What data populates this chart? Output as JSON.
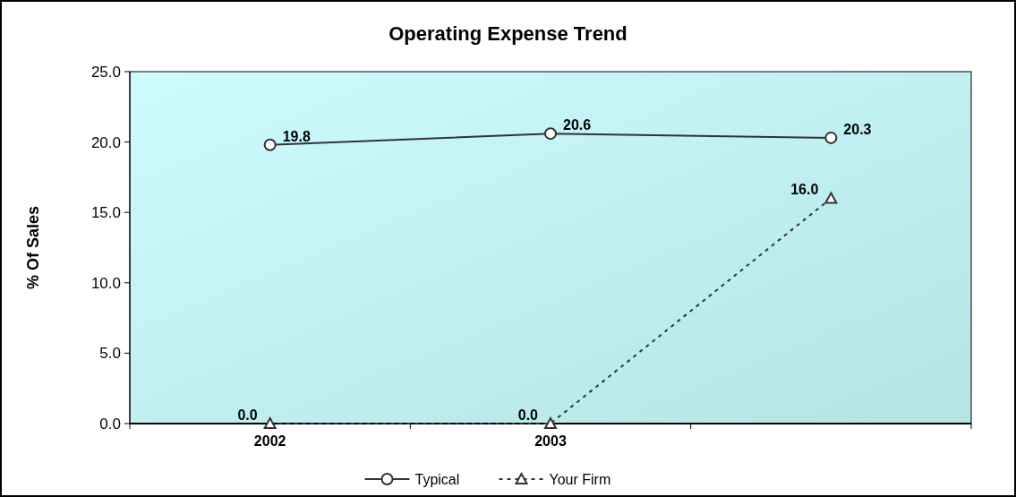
{
  "chart_data": {
    "type": "line",
    "title": "Operating Expense Trend",
    "ylabel": "% Of Sales",
    "categories": [
      "2002",
      "2003",
      null
    ],
    "ylim": [
      0,
      25
    ],
    "yticks": [
      {
        "value": 0,
        "label": "0.0"
      },
      {
        "value": 5,
        "label": "5.0"
      },
      {
        "value": 10,
        "label": "10.0"
      },
      {
        "value": 15,
        "label": "15.0"
      },
      {
        "value": 20,
        "label": "20.0"
      },
      {
        "value": 25,
        "label": "25.0"
      }
    ],
    "grid": false,
    "legend": "bottom",
    "series": [
      {
        "name": "Typical",
        "color": "#333333",
        "values": [
          19.8,
          20.6,
          20.3
        ],
        "value_labels": [
          "19.8",
          "20.6",
          "20.3"
        ],
        "marker": "circle",
        "line_style": "solid"
      },
      {
        "name": "Your Firm",
        "color": "#333333",
        "values": [
          0.0,
          0.0,
          16.0
        ],
        "value_labels": [
          "0.0",
          "0.0",
          "16.0"
        ],
        "marker": "triangle",
        "line_style": "dashed"
      }
    ]
  }
}
